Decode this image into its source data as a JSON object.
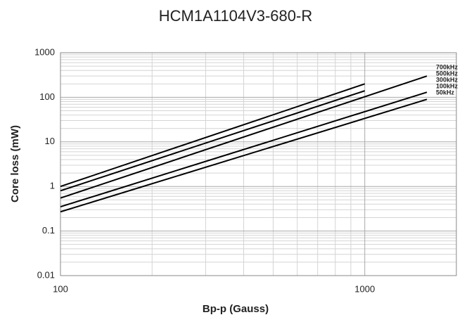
{
  "chart_data": {
    "type": "line",
    "title": "HCM1A1104V3-680-R",
    "xlabel": "Bp-p (Gauss)",
    "ylabel": "Core loss (mW)",
    "log_x": true,
    "log_y": true,
    "grid": true,
    "minor_grid": true,
    "xlim": [
      100,
      2000
    ],
    "xticks": [
      100,
      1000
    ],
    "ylim": [
      0.01,
      1000
    ],
    "yticks": [
      0.01,
      0.1,
      1,
      10,
      100,
      1000
    ],
    "series": [
      {
        "name": "700kHz",
        "color": "#000000",
        "x": [
          100,
          1000
        ],
        "values": [
          1.0,
          200
        ]
      },
      {
        "name": "500kHz",
        "color": "#000000",
        "x": [
          100,
          1000
        ],
        "values": [
          0.8,
          140
        ]
      },
      {
        "name": "300kHz",
        "color": "#000000",
        "x": [
          100,
          1600
        ],
        "values": [
          0.55,
          300
        ]
      },
      {
        "name": "100kHz",
        "color": "#000000",
        "x": [
          100,
          1600
        ],
        "values": [
          0.35,
          130
        ]
      },
      {
        "name": "50kHz",
        "color": "#000000",
        "x": [
          100,
          1600
        ],
        "values": [
          0.27,
          90
        ]
      }
    ]
  }
}
